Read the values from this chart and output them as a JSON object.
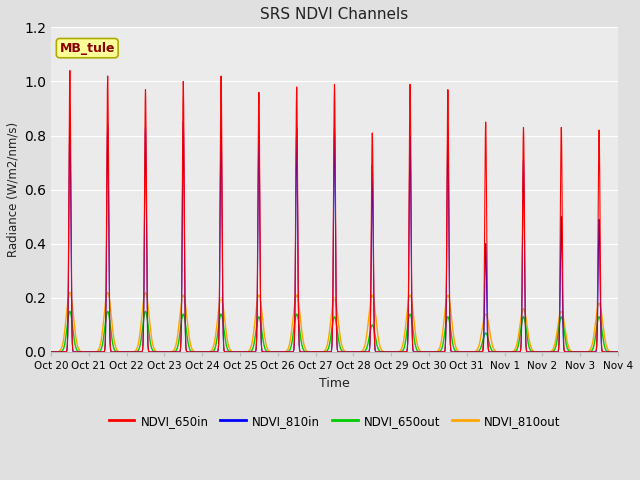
{
  "title": "SRS NDVI Channels",
  "xlabel": "Time",
  "ylabel": "Radiance (W/m2/nm/s)",
  "ylim": [
    0.0,
    1.2
  ],
  "annotation_text": "MB_tule",
  "annotation_color": "#8B0000",
  "annotation_bg": "#FFFF99",
  "annotation_border": "#AAAA00",
  "tick_labels": [
    "Oct 20",
    "Oct 21",
    "Oct 22",
    "Oct 23",
    "Oct 24",
    "Oct 25",
    "Oct 26",
    "Oct 27",
    "Oct 28",
    "Oct 29",
    "Oct 30",
    "Oct 31",
    "Nov 1",
    "Nov 2",
    "Nov 3",
    "Nov 4"
  ],
  "legend_entries": [
    "NDVI_650in",
    "NDVI_810in",
    "NDVI_650out",
    "NDVI_810out"
  ],
  "legend_colors": [
    "#FF0000",
    "#0000FF",
    "#00CC00",
    "#FFA500"
  ],
  "bg_color": "#E0E0E0",
  "inner_bg_color": "#EBEBEB",
  "n_days": 15,
  "peaks_650in": [
    1.04,
    1.02,
    0.97,
    1.0,
    1.02,
    0.96,
    0.98,
    0.99,
    0.81,
    0.99,
    0.97,
    0.85,
    0.83,
    0.83,
    0.82
  ],
  "peaks_810in": [
    0.86,
    0.84,
    0.83,
    0.85,
    0.84,
    0.8,
    0.83,
    0.83,
    0.69,
    0.8,
    0.81,
    0.4,
    0.71,
    0.5,
    0.49
  ],
  "peaks_650out": [
    0.15,
    0.15,
    0.15,
    0.14,
    0.14,
    0.13,
    0.14,
    0.13,
    0.1,
    0.14,
    0.13,
    0.07,
    0.13,
    0.13,
    0.13
  ],
  "peaks_810out": [
    0.22,
    0.22,
    0.22,
    0.21,
    0.2,
    0.21,
    0.21,
    0.2,
    0.21,
    0.21,
    0.21,
    0.14,
    0.16,
    0.15,
    0.18
  ],
  "grid_yticks": [
    0.0,
    0.2,
    0.4,
    0.6,
    0.8,
    1.0,
    1.2
  ],
  "grid_color": "#FFFFFF",
  "spine_color": "#BBBBBB"
}
